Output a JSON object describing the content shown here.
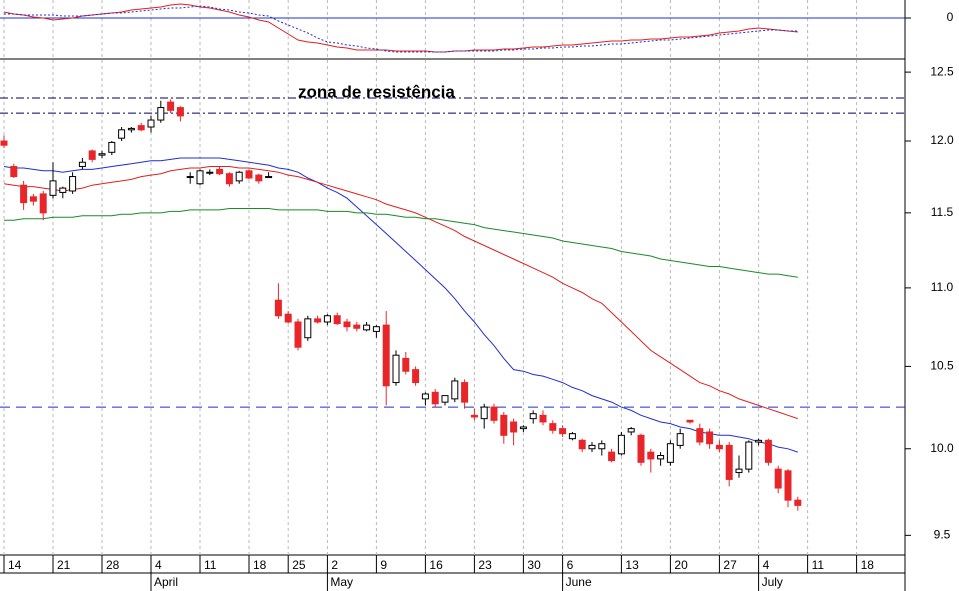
{
  "chart_data": {
    "type": "candlestick",
    "annotation": "zona de resistência",
    "log": true,
    "ylim": [
      9.39,
      12.59
    ],
    "yticks": [
      9.5,
      {
        "value": 10,
        "label": "10.0"
      },
      10.5,
      {
        "value": 11,
        "label": "11.0"
      },
      11.5,
      {
        "value": 12,
        "label": "12.0"
      },
      12.5
    ],
    "grid": true,
    "colors": {
      "up": "#ffffff",
      "down": "#e8262a"
    },
    "categories": [
      "14",
      null,
      null,
      null,
      null,
      "21",
      null,
      null,
      null,
      null,
      "28",
      null,
      null,
      null,
      null,
      "4",
      null,
      null,
      null,
      null,
      "11",
      null,
      null,
      null,
      null,
      "18",
      null,
      null,
      null,
      "25",
      null,
      null,
      null,
      "2",
      null,
      null,
      null,
      null,
      "9",
      null,
      null,
      null,
      null,
      "16",
      null,
      null,
      null,
      null,
      "23",
      null,
      null,
      null,
      null,
      "30",
      null,
      null,
      null,
      "6",
      null,
      null,
      null,
      null,
      null,
      "13",
      null,
      null,
      null,
      null,
      "20",
      null,
      null,
      null,
      null,
      "27",
      null,
      null,
      null,
      "4",
      null,
      null,
      null,
      null,
      "11",
      null,
      null,
      null,
      null,
      "18",
      null,
      null,
      null,
      null
    ],
    "months": [
      null,
      null,
      null,
      null,
      null,
      null,
      null,
      null,
      null,
      null,
      null,
      null,
      null,
      null,
      null,
      "April",
      null,
      null,
      null,
      null,
      null,
      null,
      null,
      null,
      null,
      null,
      null,
      null,
      null,
      null,
      null,
      null,
      null,
      "May",
      null,
      null,
      null,
      null,
      null,
      null,
      null,
      null,
      null,
      null,
      null,
      null,
      null,
      null,
      null,
      null,
      null,
      null,
      null,
      null,
      null,
      null,
      null,
      "June",
      null,
      null,
      null,
      null,
      null,
      null,
      null,
      null,
      null,
      null,
      null,
      null,
      null,
      null,
      null,
      null,
      null,
      null,
      null,
      "July",
      null,
      null,
      null,
      null,
      null,
      null,
      null,
      null,
      null,
      null,
      null,
      null,
      null,
      null
    ],
    "open": [
      12.0,
      11.82,
      11.69,
      11.61,
      11.63,
      11.62,
      11.64,
      11.65,
      11.82,
      11.93,
      11.9,
      11.92,
      12.02,
      12.08,
      12.11,
      12.1,
      12.15,
      12.28,
      12.24,
      11.75,
      11.7,
      11.78,
      11.8,
      11.77,
      11.72,
      11.79,
      11.76,
      11.75,
      10.92,
      10.83,
      10.78,
      10.68,
      10.8,
      10.78,
      10.82,
      10.78,
      10.76,
      10.73,
      10.72,
      10.76,
      10.4,
      10.55,
      10.48,
      10.3,
      10.34,
      10.28,
      10.3,
      10.4,
      10.2,
      10.18,
      10.25,
      10.2,
      10.16,
      10.12,
      10.18,
      10.2,
      10.15,
      10.12,
      10.06,
      10.05,
      10.0,
      10.0,
      9.98,
      9.97,
      10.1,
      10.08,
      9.98,
      9.94,
      9.92,
      10.02,
      10.17,
      10.12,
      10.1,
      10.02,
      10.02,
      9.86,
      9.88,
      10.04,
      10.05,
      9.88,
      9.87,
      9.7,
      null,
      null,
      null,
      null,
      null,
      null,
      null,
      null,
      null,
      null
    ],
    "high": [
      12.04,
      11.84,
      11.72,
      11.63,
      11.65,
      11.85,
      11.68,
      11.78,
      11.88,
      11.94,
      11.93,
      12.0,
      12.1,
      12.1,
      12.13,
      12.18,
      12.29,
      12.3,
      12.25,
      11.78,
      11.8,
      11.8,
      11.82,
      11.78,
      11.79,
      11.8,
      11.77,
      11.78,
      11.03,
      10.85,
      10.8,
      10.82,
      10.82,
      10.83,
      10.84,
      10.8,
      10.78,
      10.78,
      10.76,
      10.85,
      10.6,
      10.59,
      10.5,
      10.34,
      10.36,
      10.32,
      10.43,
      10.42,
      10.24,
      10.27,
      10.27,
      10.22,
      10.18,
      10.14,
      10.23,
      10.23,
      10.17,
      10.14,
      10.1,
      10.06,
      10.04,
      10.05,
      10.0,
      10.1,
      10.13,
      10.09,
      10.0,
      9.98,
      10.05,
      10.12,
      10.17,
      10.15,
      10.12,
      10.05,
      10.04,
      9.96,
      10.05,
      10.06,
      10.06,
      9.9,
      9.88,
      9.72,
      null,
      null,
      null,
      null,
      null,
      null,
      null,
      null,
      null,
      null
    ],
    "low": [
      11.95,
      11.74,
      11.52,
      11.55,
      11.45,
      11.6,
      11.6,
      11.63,
      11.8,
      11.85,
      11.88,
      11.9,
      12.0,
      12.06,
      12.07,
      12.06,
      12.13,
      12.2,
      12.14,
      11.7,
      11.69,
      11.76,
      11.76,
      11.68,
      11.7,
      11.73,
      11.7,
      11.74,
      10.8,
      10.77,
      10.6,
      10.66,
      10.77,
      10.76,
      10.76,
      10.72,
      10.72,
      10.72,
      10.68,
      10.26,
      10.38,
      10.45,
      10.38,
      10.26,
      10.25,
      10.26,
      10.28,
      10.24,
      10.17,
      10.12,
      10.15,
      10.03,
      10.02,
      10.1,
      10.15,
      10.14,
      10.09,
      10.07,
      10.05,
      9.98,
      9.98,
      9.96,
      9.92,
      9.96,
      10.08,
      9.9,
      9.86,
      9.9,
      9.9,
      10.0,
      10.15,
      10.02,
      10.0,
      9.98,
      9.78,
      9.83,
      9.86,
      10.02,
      9.9,
      9.74,
      9.66,
      9.64,
      null,
      null,
      null,
      null,
      null,
      null,
      null,
      null,
      null,
      null
    ],
    "close": [
      11.97,
      11.75,
      11.57,
      11.58,
      11.5,
      11.72,
      11.67,
      11.75,
      11.85,
      11.87,
      11.91,
      11.99,
      12.08,
      12.09,
      12.08,
      12.15,
      12.24,
      12.22,
      12.18,
      11.75,
      11.79,
      11.78,
      11.77,
      11.7,
      11.78,
      11.74,
      11.72,
      11.75,
      10.82,
      10.78,
      10.62,
      10.8,
      10.78,
      10.82,
      10.77,
      10.75,
      10.74,
      10.76,
      10.75,
      10.38,
      10.57,
      10.47,
      10.4,
      10.33,
      10.27,
      10.32,
      10.41,
      10.28,
      10.19,
      10.25,
      10.17,
      10.08,
      10.1,
      10.13,
      10.21,
      10.16,
      10.11,
      10.09,
      10.09,
      10.0,
      10.02,
      10.03,
      9.93,
      10.08,
      10.12,
      9.92,
      9.94,
      9.96,
      10.03,
      10.09,
      10.16,
      10.04,
      10.03,
      10.0,
      9.82,
      9.88,
      10.04,
      10.05,
      9.92,
      9.77,
      9.7,
      9.67,
      null,
      null,
      null,
      null,
      null,
      null,
      null,
      null,
      null,
      null
    ],
    "lines": [
      {
        "color": "#1f2fd0",
        "values": [
          11.82,
          11.81,
          11.81,
          11.8,
          11.79,
          11.79,
          11.78,
          11.79,
          11.8,
          11.8,
          11.81,
          11.82,
          11.83,
          11.84,
          11.85,
          11.86,
          11.86,
          11.87,
          11.88,
          11.88,
          11.88,
          11.88,
          11.88,
          11.87,
          11.86,
          11.85,
          11.84,
          11.83,
          11.81,
          11.8,
          11.78,
          11.74,
          11.71,
          11.67,
          11.64,
          11.6,
          11.54,
          11.48,
          11.42,
          11.36,
          11.3,
          11.24,
          11.18,
          11.12,
          11.06,
          11.0,
          10.93,
          10.85,
          10.78,
          10.7,
          10.63,
          10.55,
          10.48,
          10.47,
          10.45,
          10.44,
          10.42,
          10.4,
          10.37,
          10.35,
          10.32,
          10.3,
          10.28,
          10.25,
          10.23,
          10.2,
          10.18,
          10.16,
          10.15,
          10.13,
          10.12,
          10.1,
          10.09,
          10.08,
          10.08,
          10.07,
          10.06,
          10.04,
          10.03,
          10.01,
          10.0,
          9.98,
          null,
          null,
          null,
          null,
          null,
          null,
          null,
          null,
          null,
          null
        ]
      },
      {
        "color": "#e02020",
        "values": [
          11.7,
          11.69,
          11.68,
          11.68,
          11.67,
          11.66,
          11.65,
          11.66,
          11.67,
          11.69,
          11.7,
          11.71,
          11.72,
          11.73,
          11.75,
          11.76,
          11.77,
          11.79,
          11.8,
          11.81,
          11.81,
          11.82,
          11.82,
          11.82,
          11.81,
          11.81,
          11.8,
          11.79,
          11.78,
          11.76,
          11.75,
          11.73,
          11.71,
          11.69,
          11.67,
          11.65,
          11.63,
          11.61,
          11.59,
          11.56,
          11.54,
          11.52,
          11.5,
          11.47,
          11.44,
          11.41,
          11.38,
          11.34,
          11.31,
          11.28,
          11.25,
          11.22,
          11.19,
          11.16,
          11.13,
          11.1,
          11.07,
          11.03,
          11.0,
          10.97,
          10.93,
          10.9,
          10.84,
          10.78,
          10.72,
          10.66,
          10.6,
          10.56,
          10.52,
          10.48,
          10.44,
          10.4,
          10.38,
          10.35,
          10.33,
          10.3,
          10.28,
          10.26,
          10.24,
          10.22,
          10.2,
          10.18,
          null,
          null,
          null,
          null,
          null,
          null,
          null,
          null,
          null,
          null
        ]
      },
      {
        "color": "#1a8a2a",
        "values": [
          11.45,
          11.45,
          11.46,
          11.46,
          11.46,
          11.47,
          11.47,
          11.47,
          11.48,
          11.48,
          11.48,
          11.48,
          11.49,
          11.49,
          11.5,
          11.5,
          11.5,
          11.51,
          11.51,
          11.52,
          11.52,
          11.52,
          11.52,
          11.53,
          11.53,
          11.53,
          11.53,
          11.53,
          11.52,
          11.52,
          11.52,
          11.52,
          11.52,
          11.51,
          11.51,
          11.51,
          11.5,
          11.5,
          11.49,
          11.49,
          11.48,
          11.47,
          11.47,
          11.46,
          11.46,
          11.45,
          11.44,
          11.43,
          11.42,
          11.4,
          11.39,
          11.38,
          11.37,
          11.36,
          11.35,
          11.34,
          11.33,
          11.31,
          11.3,
          11.29,
          11.28,
          11.27,
          11.26,
          11.24,
          11.23,
          11.22,
          11.21,
          11.19,
          11.18,
          11.17,
          11.16,
          11.15,
          11.14,
          11.14,
          11.13,
          11.12,
          11.11,
          11.1,
          11.09,
          11.09,
          11.08,
          11.07,
          null,
          null,
          null,
          null,
          null,
          null,
          null,
          null,
          null,
          null
        ]
      }
    ],
    "reference_lines": [
      {
        "value": 12.31,
        "color": "#000060",
        "style": "dash-dot"
      },
      {
        "value": 12.2,
        "color": "#000060",
        "style": "dash-dot"
      },
      {
        "value": 10.25,
        "color": "#1f2fd0",
        "style": "dashed"
      }
    ],
    "indicator": {
      "ylim": [
        -0.4,
        0.18
      ],
      "yticks": [
        0
      ],
      "lines": [
        {
          "color": "#e02020",
          "style": "solid",
          "values": [
            0.06,
            0.04,
            0.03,
            0.01,
            0.0,
            -0.02,
            -0.01,
            0.0,
            0.02,
            0.03,
            0.04,
            0.05,
            0.06,
            0.08,
            0.09,
            0.1,
            0.11,
            0.13,
            0.14,
            0.13,
            0.11,
            0.1,
            0.08,
            0.06,
            0.03,
            0.01,
            -0.02,
            -0.04,
            -0.1,
            -0.16,
            -0.22,
            -0.24,
            -0.25,
            -0.27,
            -0.29,
            -0.3,
            -0.32,
            -0.32,
            -0.32,
            -0.32,
            -0.33,
            -0.33,
            -0.33,
            -0.33,
            -0.34,
            -0.34,
            -0.33,
            -0.33,
            -0.32,
            -0.32,
            -0.32,
            -0.31,
            -0.31,
            -0.3,
            -0.29,
            -0.29,
            -0.28,
            -0.27,
            -0.27,
            -0.26,
            -0.25,
            -0.24,
            -0.23,
            -0.23,
            -0.22,
            -0.22,
            -0.21,
            -0.21,
            -0.2,
            -0.19,
            -0.19,
            -0.18,
            -0.17,
            -0.15,
            -0.14,
            -0.13,
            -0.11,
            -0.1,
            -0.11,
            -0.12,
            -0.13,
            -0.14,
            null,
            null,
            null,
            null,
            null,
            null,
            null,
            null,
            null,
            null
          ]
        },
        {
          "color": "#1f2fd0",
          "style": "dotted",
          "values": [
            0.04,
            0.04,
            0.03,
            0.03,
            0.03,
            0.03,
            0.02,
            0.02,
            0.02,
            0.03,
            0.04,
            0.05,
            0.05,
            0.06,
            0.07,
            0.08,
            0.09,
            0.1,
            0.1,
            0.11,
            0.12,
            0.11,
            0.09,
            0.08,
            0.06,
            0.05,
            0.03,
            0.02,
            -0.03,
            -0.07,
            -0.11,
            -0.15,
            -0.2,
            -0.24,
            -0.25,
            -0.27,
            -0.28,
            -0.3,
            -0.31,
            -0.33,
            -0.34,
            -0.34,
            -0.34,
            -0.34,
            -0.34,
            -0.34,
            -0.33,
            -0.33,
            -0.33,
            -0.33,
            -0.33,
            -0.32,
            -0.32,
            -0.31,
            -0.31,
            -0.3,
            -0.3,
            -0.29,
            -0.29,
            -0.28,
            -0.28,
            -0.27,
            -0.26,
            -0.26,
            -0.25,
            -0.24,
            -0.23,
            -0.22,
            -0.22,
            -0.21,
            -0.2,
            -0.19,
            -0.18,
            -0.17,
            -0.16,
            -0.15,
            -0.14,
            -0.13,
            -0.12,
            -0.12,
            -0.13,
            -0.13,
            null,
            null,
            null,
            null,
            null,
            null,
            null,
            null,
            null,
            null
          ]
        }
      ]
    }
  }
}
